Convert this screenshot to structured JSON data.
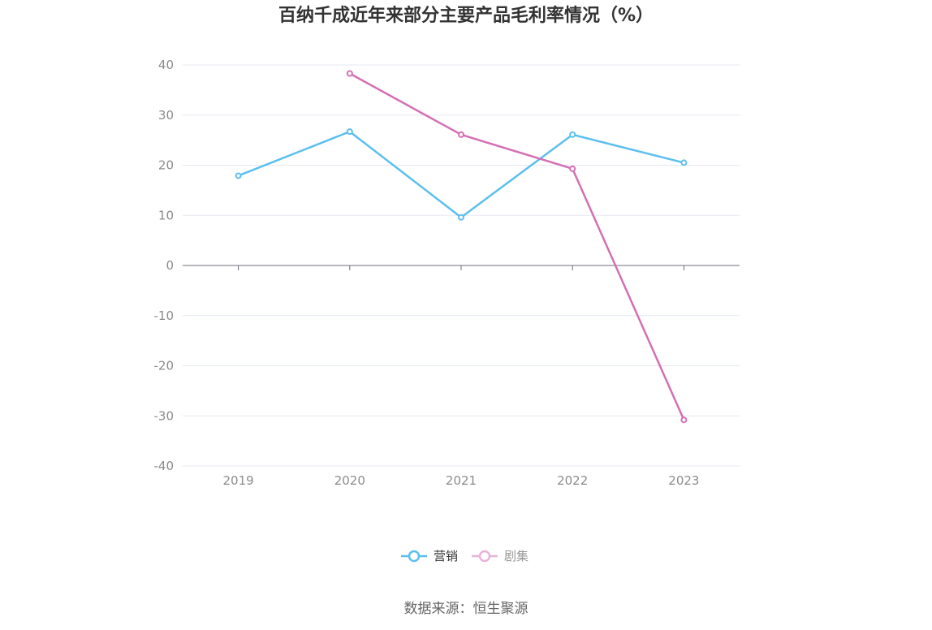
{
  "chart_data": {
    "type": "line",
    "title": "百纳千成近年来部分主要产品毛利率情况（%）",
    "xlabel": "",
    "ylabel": "",
    "categories": [
      "2019",
      "2020",
      "2021",
      "2022",
      "2023"
    ],
    "ylim": [
      -40,
      40
    ],
    "yticks": [
      40,
      30,
      20,
      10,
      0,
      -10,
      -20,
      -30,
      -40
    ],
    "grid": true,
    "legend_position": "bottom-center",
    "series": [
      {
        "name": "营销",
        "color": "#5bbfef",
        "values": [
          17.9,
          26.7,
          9.6,
          26.1,
          20.5
        ]
      },
      {
        "name": "剧集",
        "color": "#d46fb3",
        "legend_color": "#e8b3d7",
        "values": [
          null,
          38.3,
          26.1,
          19.3,
          -30.8
        ]
      }
    ]
  },
  "footer": {
    "source": "数据来源：恒生聚源"
  }
}
